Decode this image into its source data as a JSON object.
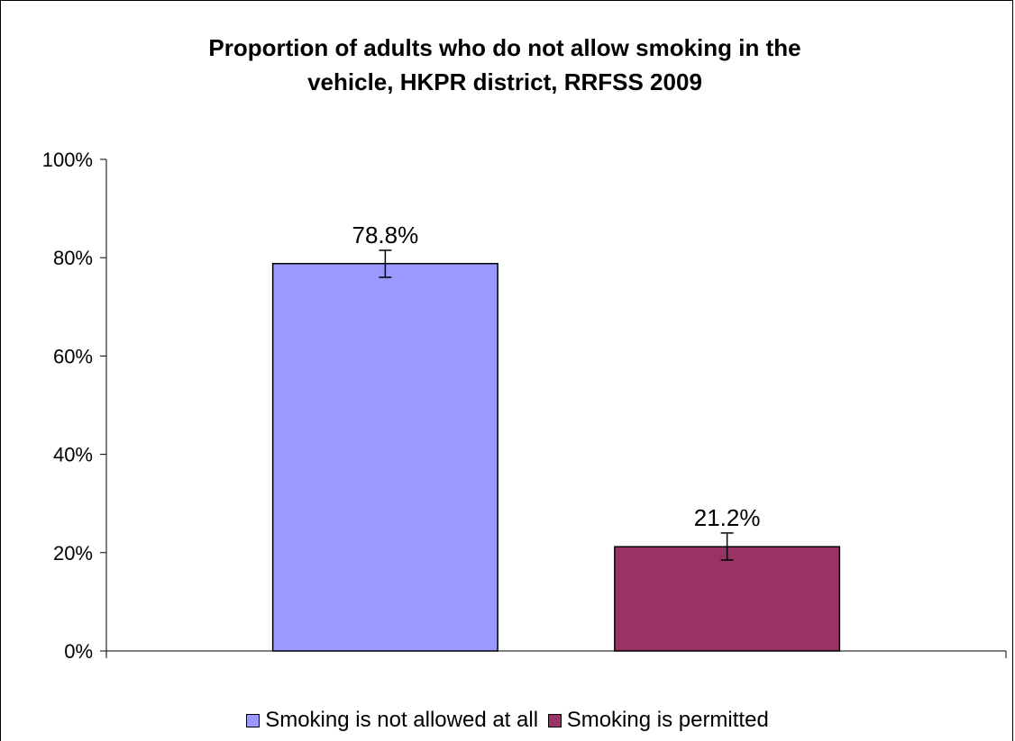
{
  "chart_data": {
    "type": "bar",
    "title": "Proportion of adults who do not allow smoking in the vehicle, HKPR district, RRFSS 2009",
    "title_lines": [
      "Proportion of adults who do not allow smoking in the",
      "vehicle, HKPR district, RRFSS 2009"
    ],
    "xlabel": "",
    "ylabel": "",
    "ylim": [
      0,
      100
    ],
    "yticks": [
      0,
      20,
      40,
      60,
      80,
      100
    ],
    "ytick_labels": [
      "0%",
      "20%",
      "40%",
      "60%",
      "80%",
      "100%"
    ],
    "grid": false,
    "legend_position": "bottom",
    "series": [
      {
        "name": "Smoking is not allowed at all",
        "value": 78.8,
        "label": "78.8%",
        "error": [
          76.0,
          81.5
        ],
        "color": "#9999ff"
      },
      {
        "name": "Smoking is permitted",
        "value": 21.2,
        "label": "21.2%",
        "error": [
          18.5,
          24.0
        ],
        "color": "#993366"
      }
    ]
  }
}
